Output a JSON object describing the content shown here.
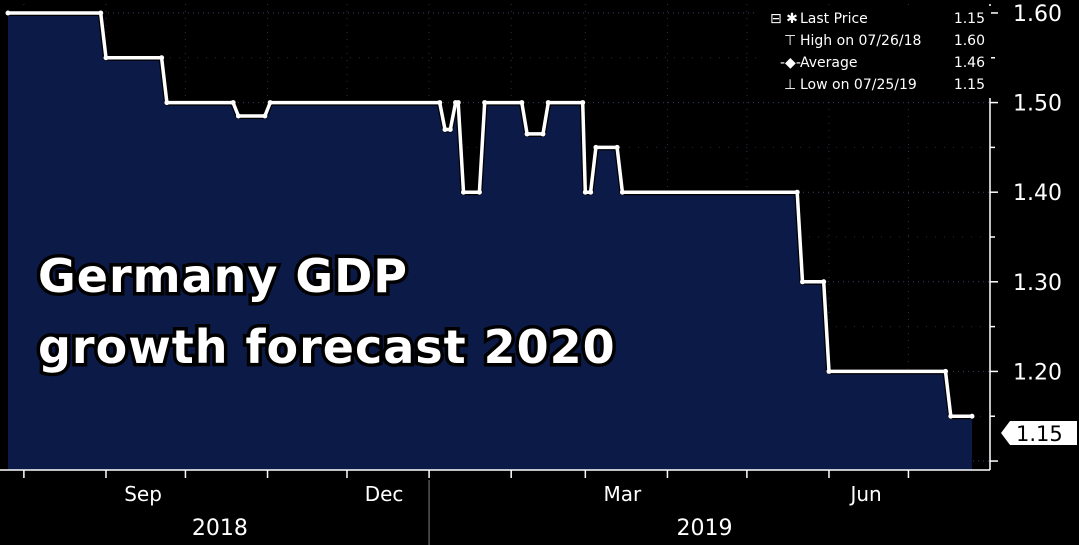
{
  "chart_data": {
    "type": "area",
    "title_lines": [
      "Germany GDP",
      "growth forecast 2020"
    ],
    "ylim": [
      1.09,
      1.61
    ],
    "y_ticks": [
      "1.20",
      "1.30",
      "1.40",
      "1.50",
      "1.60"
    ],
    "x_month_ticks": [
      "Sep",
      "Dec",
      "Mar",
      "Jun"
    ],
    "x_year_labels": [
      "2018",
      "2019"
    ],
    "grid": true,
    "legend_position": "top-right",
    "legend": [
      {
        "label": "Last Price",
        "value": "1.15"
      },
      {
        "label": "High on 07/26/18",
        "value": "1.60"
      },
      {
        "label": "Average",
        "value": "1.46"
      },
      {
        "label": "Low on 07/25/19",
        "value": "1.15"
      }
    ],
    "last_value_label": "1.15",
    "colors": {
      "area_fill": "#0c1a47",
      "line": "#ffffff",
      "background": "#000000",
      "grid": "#3a4a6a"
    },
    "x": [
      "2018-07-26",
      "2018-08-30",
      "2018-09-01",
      "2018-09-22",
      "2018-09-24",
      "2018-10-19",
      "2018-10-21",
      "2018-10-31",
      "2018-11-02",
      "2019-01-05",
      "2019-01-07",
      "2019-01-09",
      "2019-01-11",
      "2019-01-12",
      "2019-01-14",
      "2019-01-20",
      "2019-01-22",
      "2019-02-05",
      "2019-02-07",
      "2019-02-13",
      "2019-02-15",
      "2019-02-28",
      "2019-03-01",
      "2019-03-03",
      "2019-03-05",
      "2019-03-13",
      "2019-03-15",
      "2019-05-20",
      "2019-05-22",
      "2019-05-30",
      "2019-06-01",
      "2019-07-15",
      "2019-07-17",
      "2019-07-25"
    ],
    "y": [
      1.6,
      1.6,
      1.55,
      1.55,
      1.5,
      1.5,
      1.485,
      1.485,
      1.5,
      1.5,
      1.47,
      1.47,
      1.5,
      1.5,
      1.4,
      1.4,
      1.5,
      1.5,
      1.465,
      1.465,
      1.5,
      1.5,
      1.4,
      1.4,
      1.45,
      1.45,
      1.4,
      1.4,
      1.3,
      1.3,
      1.2,
      1.2,
      1.15,
      1.15
    ]
  }
}
